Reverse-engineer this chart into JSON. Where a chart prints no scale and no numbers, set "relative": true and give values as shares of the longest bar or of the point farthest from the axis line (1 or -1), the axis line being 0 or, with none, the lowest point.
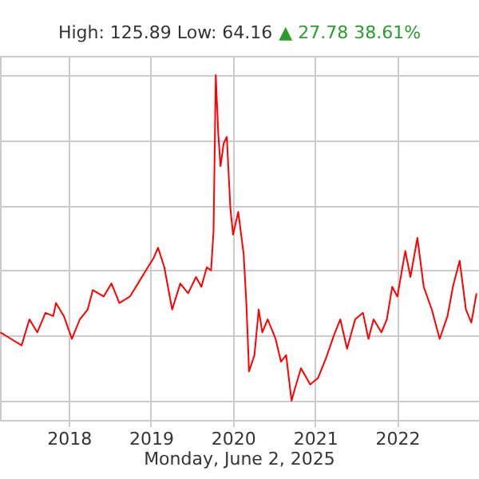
{
  "chart_data": {
    "type": "line",
    "title": "High: 125.89 Low: 64.16",
    "subtitle": "▲ 27.78 38.61%",
    "xlabel": "Monday, June 2, 2025",
    "relative": true,
    "grid": true,
    "xlim": [
      "2017-03-01",
      "2022-12-31"
    ],
    "xticks": [
      "2018",
      "2019",
      "2020",
      "2021",
      "2022"
    ],
    "x": [
      "2017-03-03",
      "2017-04-19",
      "2017-06-05",
      "2017-07-10",
      "2017-08-14",
      "2017-09-19",
      "2017-10-24",
      "2017-11-05",
      "2017-12-10",
      "2018-01-15",
      "2018-02-19",
      "2018-03-26",
      "2018-04-18",
      "2018-06-05",
      "2018-07-10",
      "2018-08-14",
      "2018-09-30",
      "2018-11-05",
      "2018-12-10",
      "2019-01-15",
      "2019-02-02",
      "2019-03-02",
      "2019-04-06",
      "2019-05-12",
      "2019-06-16",
      "2019-07-21",
      "2019-08-14",
      "2019-09-07",
      "2019-09-26",
      "2019-10-07",
      "2019-10-17",
      "2019-10-28",
      "2019-11-07",
      "2019-11-21",
      "2019-12-05",
      "2019-12-21",
      "2020-01-02",
      "2020-01-25",
      "2020-02-18",
      "2020-03-01",
      "2020-03-13",
      "2020-04-06",
      "2020-04-25",
      "2020-05-11",
      "2020-06-04",
      "2020-07-09",
      "2020-08-02",
      "2020-08-25",
      "2020-09-18",
      "2020-09-30",
      "2020-10-30",
      "2020-12-10",
      "2021-01-14",
      "2021-02-18",
      "2021-03-25",
      "2021-04-23",
      "2021-05-23",
      "2021-06-28",
      "2021-08-02",
      "2021-08-26",
      "2021-09-18",
      "2021-10-23",
      "2021-11-16",
      "2021-12-10",
      "2022-01-02",
      "2022-02-06",
      "2022-03-01",
      "2022-04-01",
      "2022-04-29",
      "2022-06-04",
      "2022-07-09",
      "2022-08-13",
      "2022-09-06",
      "2022-10-06",
      "2022-11-03",
      "2022-11-27",
      "2022-12-20"
    ],
    "series": [
      {
        "color": "#ff0000",
        "values": [
          0.21,
          0.19,
          0.17,
          0.25,
          0.21,
          0.27,
          0.26,
          0.3,
          0.26,
          0.19,
          0.25,
          0.28,
          0.34,
          0.32,
          0.36,
          0.3,
          0.32,
          0.36,
          0.4,
          0.44,
          0.47,
          0.41,
          0.28,
          0.36,
          0.33,
          0.38,
          0.35,
          0.41,
          0.4,
          0.52,
          1,
          0.82,
          0.72,
          0.79,
          0.81,
          0.59,
          0.51,
          0.58,
          0.45,
          0.3,
          0.09,
          0.14,
          0.28,
          0.21,
          0.25,
          0.19,
          0.12,
          0.14,
          0,
          0.03,
          0.1,
          0.05,
          0.07,
          0.13,
          0.2,
          0.25,
          0.16,
          0.25,
          0.27,
          0.19,
          0.25,
          0.21,
          0.25,
          0.35,
          0.32,
          0.46,
          0.38,
          0.5,
          0.35,
          0.28,
          0.19,
          0.26,
          0.35,
          0.43,
          0.28,
          0.24,
          0.33
        ]
      }
    ]
  }
}
